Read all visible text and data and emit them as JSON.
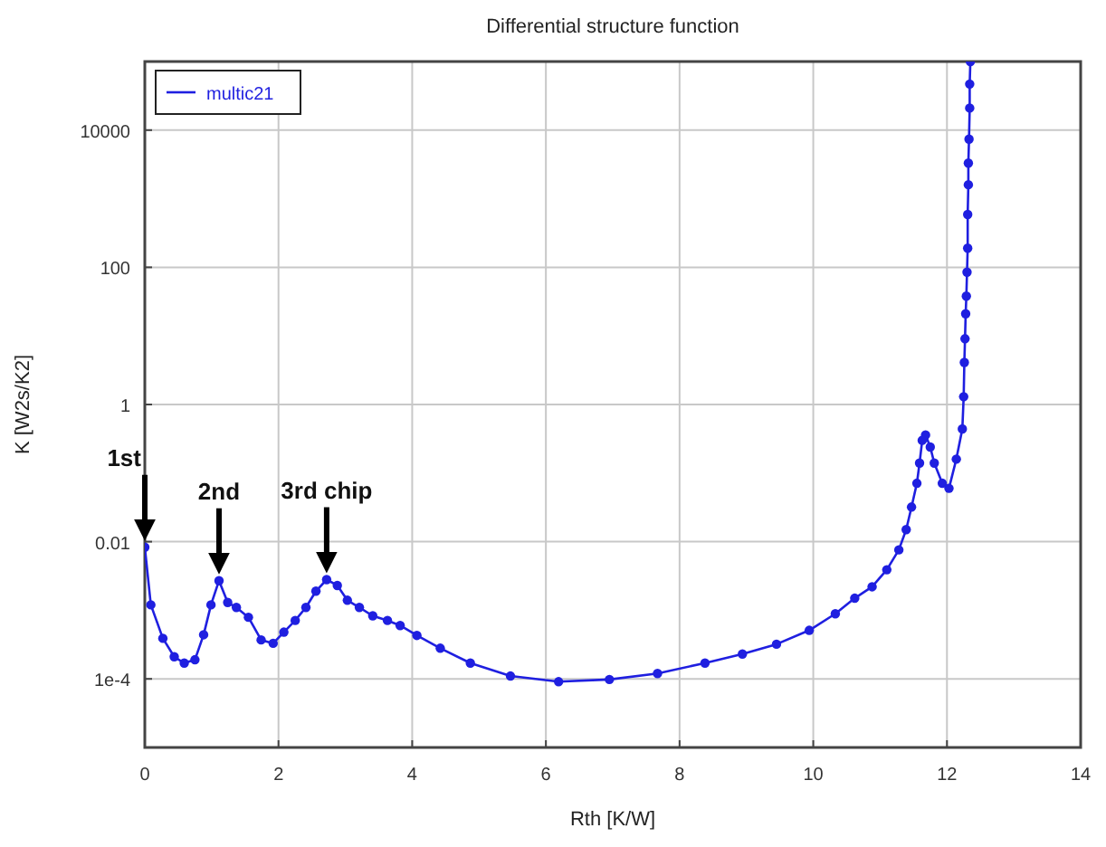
{
  "chart_data": {
    "type": "line",
    "title": "Differential structure function",
    "xlabel": "Rth  [K/W]",
    "ylabel": "K  [W2s/K2]",
    "log": "y",
    "grid": true,
    "legend": "top left",
    "marker": "circle",
    "line_style": "solid",
    "xlim": [
      0,
      14
    ],
    "xticks": [
      0,
      2,
      4,
      6,
      8,
      10,
      12,
      14
    ],
    "ylim": [
      1e-05,
      100000
    ],
    "yticks": [
      {
        "value": 0.0001,
        "label": "1e-4"
      },
      0.01,
      1,
      100,
      10000
    ],
    "annotations": [
      "1st",
      "2nd",
      "3rd chip"
    ],
    "series": [
      {
        "name": "multic21",
        "color": "#1f1fe0",
        "x": [
          0,
          0.09,
          0.27,
          0.44,
          0.59,
          0.75,
          0.88,
          0.99,
          1.11,
          1.24,
          1.37,
          1.55,
          1.74,
          1.92,
          2.08,
          2.25,
          2.41,
          2.56,
          2.72,
          2.88,
          3.03,
          3.21,
          3.41,
          3.63,
          3.82,
          4.07,
          4.42,
          4.87,
          5.47,
          6.19,
          6.95,
          7.67,
          8.38,
          8.94,
          9.45,
          9.94,
          10.33,
          10.62,
          10.88,
          11.1,
          11.28,
          11.39,
          11.47,
          11.55,
          11.59,
          11.63,
          11.68,
          11.75,
          11.81,
          11.93,
          12.03,
          12.14,
          12.23,
          12.25,
          12.26,
          12.27,
          12.28,
          12.29,
          12.3,
          12.31,
          12.31,
          12.32,
          12.32,
          12.33,
          12.34,
          12.34,
          12.35
        ],
        "values": [
          0.0083,
          0.0012,
          0.00039,
          0.00021,
          0.00017,
          0.00019,
          0.00044,
          0.0012,
          0.0027,
          0.0013,
          0.0011,
          0.00079,
          0.00037,
          0.00033,
          0.00048,
          0.00071,
          0.0011,
          0.0019,
          0.0028,
          0.0023,
          0.0014,
          0.0011,
          0.00083,
          0.00071,
          0.0006,
          0.00043,
          0.00028,
          0.00017,
          0.00011,
          9.1e-05,
          9.8e-05,
          0.00012,
          0.00017,
          0.00023,
          0.00032,
          0.00051,
          0.00089,
          0.0015,
          0.0022,
          0.0039,
          0.0076,
          0.015,
          0.032,
          0.071,
          0.14,
          0.3,
          0.36,
          0.24,
          0.14,
          0.071,
          0.06,
          0.16,
          0.44,
          1.3,
          4.1,
          9.1,
          21,
          38,
          85,
          190,
          590,
          1600,
          3300,
          7400,
          21000,
          47000,
          100000
        ]
      }
    ]
  }
}
